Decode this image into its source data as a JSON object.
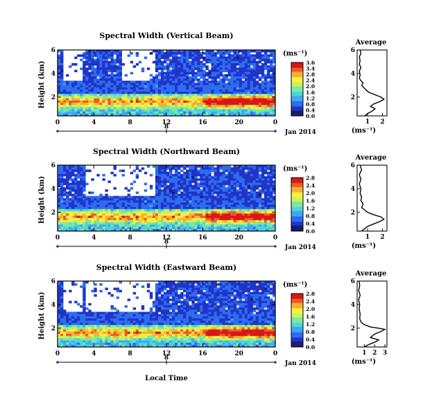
{
  "figure": {
    "ylabel": "Height (km)",
    "xlabel": "Local Time",
    "date_label": "Jan 2014",
    "date_tick": "8",
    "avg_title": "Average",
    "avg_xlabel": "(ms⁻¹)",
    "cbar_unit": "(ms⁻¹)"
  },
  "colormap": [
    "#1a1a6e",
    "#2034c8",
    "#2d6df0",
    "#3fa8f5",
    "#49d6dc",
    "#7fe8a0",
    "#c8f060",
    "#f6f040",
    "#f8b030",
    "#f05828",
    "#d81818"
  ],
  "chart_data": [
    {
      "type": "heatmap",
      "title": "Spectral Width (Vertical Beam)",
      "xlabel": "",
      "ylabel": "Height (km)",
      "x_ticks": [
        "0",
        "4",
        "8",
        "12",
        "16",
        "20",
        "0"
      ],
      "y_ticks": [
        "6",
        "4",
        "2"
      ],
      "xlim": [
        0,
        24
      ],
      "ylim": [
        0.4,
        6
      ],
      "colorbar": {
        "ticks": [
          "3.6",
          "3.4",
          "2.8",
          "2.4",
          "2.0",
          "1.6",
          "1.2",
          "0.8",
          "0.4",
          "0.0"
        ],
        "range": [
          0,
          3.6
        ]
      },
      "average": {
        "x_ticks": [
          "1",
          "2"
        ],
        "y_ticks": [
          "6",
          "4",
          "2"
        ],
        "xlim": [
          0.3,
          2.3
        ],
        "profile": [
          [
            0.5,
            6.0
          ],
          [
            0.55,
            5.7
          ],
          [
            0.45,
            5.4
          ],
          [
            0.5,
            5.1
          ],
          [
            0.45,
            4.8
          ],
          [
            0.55,
            4.5
          ],
          [
            0.45,
            4.2
          ],
          [
            0.5,
            3.9
          ],
          [
            0.45,
            3.6
          ],
          [
            0.55,
            3.4
          ],
          [
            0.7,
            3.2
          ],
          [
            0.6,
            3.0
          ],
          [
            0.75,
            2.8
          ],
          [
            0.9,
            2.6
          ],
          [
            1.1,
            2.4
          ],
          [
            1.5,
            2.2
          ],
          [
            1.9,
            2.0
          ],
          [
            2.1,
            1.8
          ],
          [
            1.8,
            1.6
          ],
          [
            1.4,
            1.4
          ],
          [
            1.2,
            1.2
          ],
          [
            1.5,
            1.0
          ],
          [
            1.3,
            0.8
          ],
          [
            1.0,
            0.6
          ],
          [
            0.8,
            0.4
          ]
        ]
      }
    },
    {
      "type": "heatmap",
      "title": "Spectral Width (Northward Beam)",
      "xlabel": "",
      "ylabel": "Height (km)",
      "x_ticks": [
        "0",
        "4",
        "8",
        "12",
        "16",
        "20",
        "0"
      ],
      "y_ticks": [
        "6",
        "4",
        "2"
      ],
      "xlim": [
        0,
        24
      ],
      "ylim": [
        0.4,
        6
      ],
      "colorbar": {
        "ticks": [
          "2.8",
          "2.4",
          "2.0",
          "1.6",
          "1.2",
          "0.8",
          "0.4",
          "0.0"
        ],
        "range": [
          0,
          2.8
        ]
      },
      "average": {
        "x_ticks": [
          "1",
          "2"
        ],
        "y_ticks": [
          "6",
          "4",
          "2"
        ],
        "xlim": [
          0.3,
          2.3
        ],
        "profile": [
          [
            0.5,
            6.0
          ],
          [
            0.6,
            5.6
          ],
          [
            0.45,
            5.2
          ],
          [
            0.55,
            4.8
          ],
          [
            0.45,
            4.4
          ],
          [
            0.55,
            4.0
          ],
          [
            0.5,
            3.6
          ],
          [
            0.6,
            3.3
          ],
          [
            0.55,
            3.0
          ],
          [
            0.7,
            2.7
          ],
          [
            0.6,
            2.4
          ],
          [
            0.8,
            2.2
          ],
          [
            1.0,
            2.0
          ],
          [
            1.4,
            1.8
          ],
          [
            1.9,
            1.6
          ],
          [
            2.1,
            1.4
          ],
          [
            1.8,
            1.2
          ],
          [
            1.4,
            1.0
          ],
          [
            1.0,
            0.8
          ],
          [
            0.8,
            0.6
          ],
          [
            0.6,
            0.4
          ]
        ]
      }
    },
    {
      "type": "heatmap",
      "title": "Spectral Width (Eastward Beam)",
      "xlabel": "Local Time",
      "ylabel": "Height (km)",
      "x_ticks": [
        "0",
        "4",
        "8",
        "12",
        "16",
        "20",
        "0"
      ],
      "y_ticks": [
        "6",
        "4",
        "2"
      ],
      "xlim": [
        0,
        24
      ],
      "ylim": [
        0.4,
        6
      ],
      "colorbar": {
        "ticks": [
          "2.8",
          "2.4",
          "2.0",
          "1.6",
          "1.2",
          "0.8",
          "0.4",
          "0.0"
        ],
        "range": [
          0,
          2.8
        ]
      },
      "average": {
        "x_ticks": [
          "1",
          "2",
          "3"
        ],
        "y_ticks": [
          "6",
          "4",
          "2"
        ],
        "xlim": [
          0.3,
          3.2
        ],
        "profile": [
          [
            0.5,
            6.0
          ],
          [
            0.55,
            5.6
          ],
          [
            0.45,
            5.2
          ],
          [
            0.6,
            4.8
          ],
          [
            0.45,
            4.4
          ],
          [
            0.55,
            4.0
          ],
          [
            0.5,
            3.6
          ],
          [
            0.6,
            3.2
          ],
          [
            0.55,
            2.8
          ],
          [
            0.7,
            2.5
          ],
          [
            1.0,
            2.3
          ],
          [
            1.6,
            2.1
          ],
          [
            2.4,
            2.0
          ],
          [
            3.0,
            1.9
          ],
          [
            2.6,
            1.7
          ],
          [
            2.0,
            1.5
          ],
          [
            1.6,
            1.2
          ],
          [
            2.4,
            1.0
          ],
          [
            2.0,
            0.8
          ],
          [
            1.4,
            0.6
          ],
          [
            1.0,
            0.4
          ]
        ]
      }
    }
  ]
}
